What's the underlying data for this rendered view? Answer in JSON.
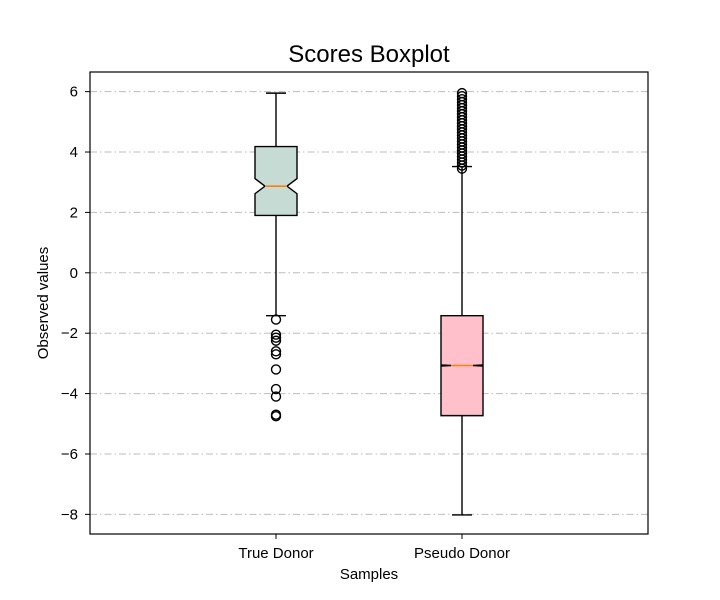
{
  "chart_data": {
    "type": "boxplot",
    "title": "Scores Boxplot",
    "xlabel": "Samples",
    "ylabel": "Observed values",
    "ylim": [
      -8.65,
      6.65
    ],
    "yticks": [
      6,
      4,
      2,
      0,
      -2,
      -4,
      -6,
      -8
    ],
    "ytick_labels": [
      "6",
      "4",
      "2",
      "0",
      "−2",
      "−4",
      "−6",
      "−8"
    ],
    "grid": "y",
    "median_color": "#ff7f0e",
    "series": [
      {
        "name": "True Donor",
        "color": "#c5dbd3",
        "notched": true,
        "whisker_low": -1.42,
        "q1": 1.9,
        "notch_low": 2.62,
        "median": 2.87,
        "notch_high": 3.12,
        "q3": 4.18,
        "whisker_high": 5.95,
        "outliers": [
          -1.55,
          -2.05,
          -2.15,
          -2.25,
          -2.6,
          -2.7,
          -3.2,
          -3.85,
          -4.1,
          -4.7,
          -4.75
        ]
      },
      {
        "name": "Pseudo Donor",
        "color": "#ffc0cb",
        "notched": true,
        "whisker_low": -8.02,
        "q1": -4.73,
        "notch_low": -3.09,
        "median": -3.07,
        "notch_high": -3.05,
        "q3": -1.42,
        "whisker_high": 3.52,
        "outliers": [
          3.45,
          3.55,
          3.65,
          3.75,
          3.85,
          3.95,
          4.05,
          4.15,
          4.25,
          4.35,
          4.45,
          4.55,
          4.65,
          4.75,
          4.85,
          4.95,
          5.05,
          5.15,
          5.25,
          5.35,
          5.45,
          5.55,
          5.65,
          5.75,
          5.85,
          5.95
        ]
      }
    ]
  }
}
